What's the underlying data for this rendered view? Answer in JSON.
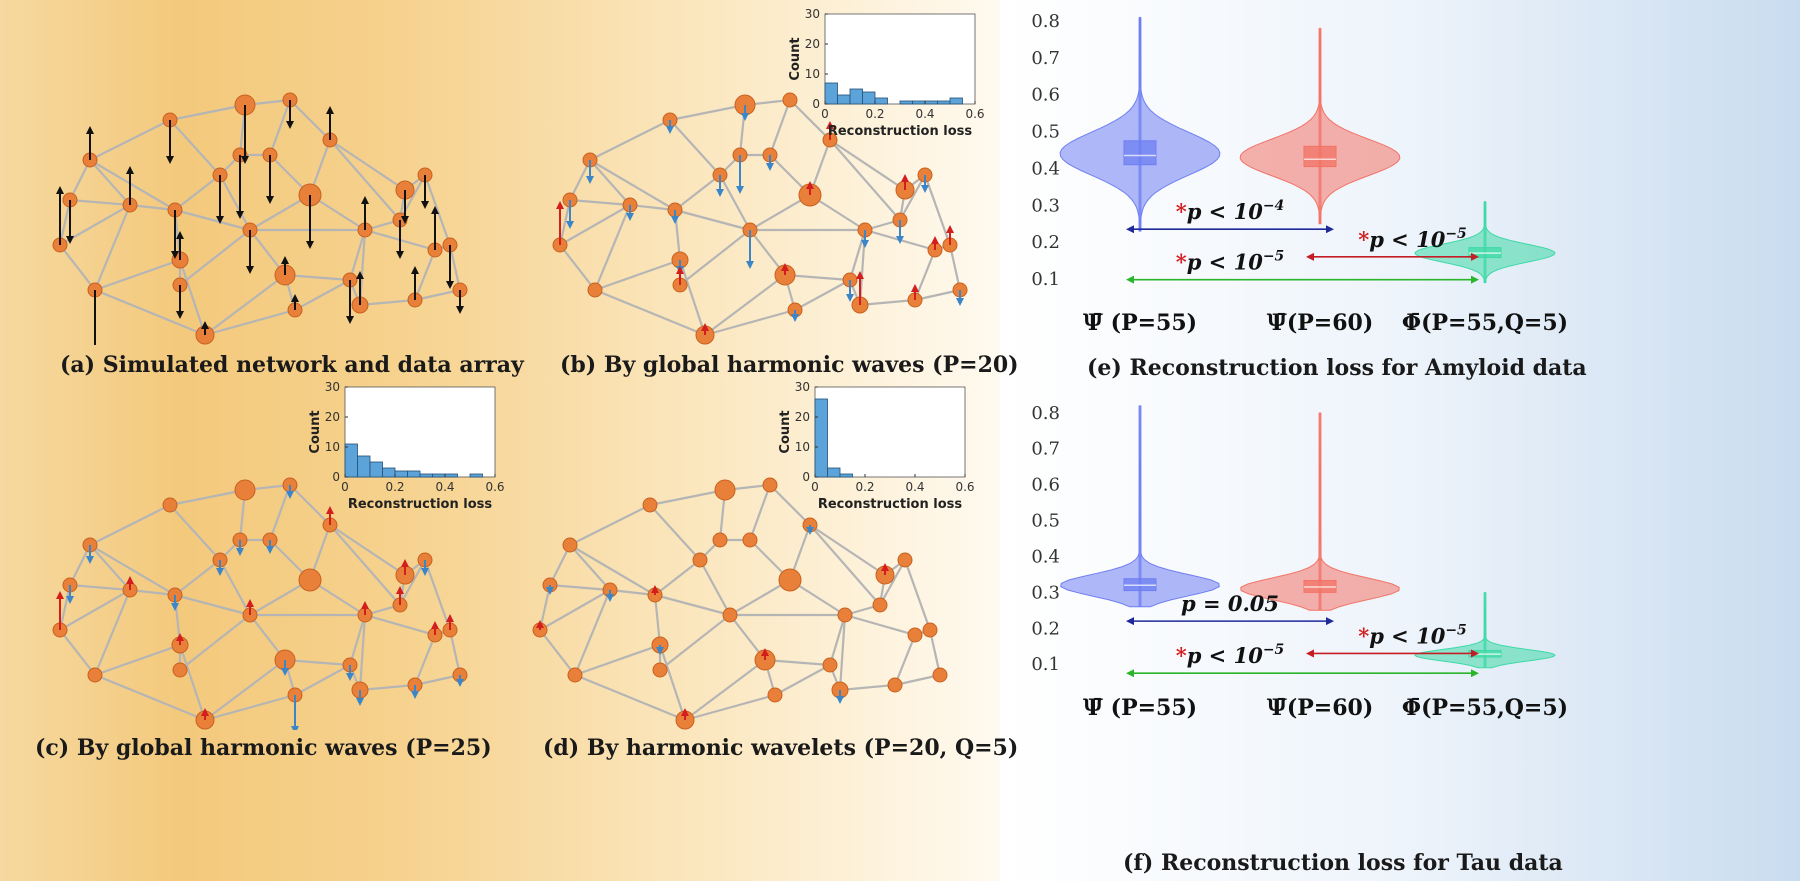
{
  "panels": {
    "a": {
      "caption": "(a) Simulated network and data array"
    },
    "b": {
      "caption": "(b) By global harmonic waves (P=20)"
    },
    "c": {
      "caption": "(c) By global harmonic waves (P=25)"
    },
    "d": {
      "caption": "(d) By harmonic wavelets (P=20, Q=5)"
    },
    "e": {
      "caption": "(e) Reconstruction loss for Amyloid data"
    },
    "f": {
      "caption": "(f) Reconstruction loss for Tau data"
    }
  },
  "colors": {
    "node": "#e8803a",
    "edge": "#b5b5b5",
    "arrow_black": "#111111",
    "arrow_red": "#d41e1e",
    "arrow_blue": "#3a86c8",
    "hist_bar": "#5ba3d9",
    "violin_blue": "#6f7ff2",
    "violin_red": "#f27366",
    "violin_green": "#3fd9a6",
    "line_blue": "#1f2a9a",
    "line_red": "#c41d25",
    "line_green": "#2bb52b"
  },
  "chart_data": [
    {
      "type": "bar",
      "id": "hist-b",
      "xlabel": "Reconstruction loss",
      "ylabel": "Count",
      "bins": [
        0.0,
        0.05,
        0.1,
        0.15,
        0.2,
        0.25,
        0.3,
        0.35,
        0.4,
        0.45,
        0.5,
        0.55
      ],
      "values": [
        7,
        3,
        5,
        4,
        2,
        0,
        1,
        1,
        1,
        1,
        2,
        0
      ],
      "bin_width": 0.05,
      "xlim": [
        0,
        0.6
      ],
      "ylim": [
        0,
        30
      ],
      "xticks": [
        "0",
        "0.2",
        "0.4",
        "0.6"
      ],
      "yticks": [
        "0",
        "10",
        "20",
        "30"
      ]
    },
    {
      "type": "bar",
      "id": "hist-c",
      "xlabel": "Reconstruction loss",
      "ylabel": "Count",
      "bins": [
        0.0,
        0.05,
        0.1,
        0.15,
        0.2,
        0.25,
        0.3,
        0.35,
        0.4,
        0.45,
        0.5,
        0.55
      ],
      "values": [
        11,
        7,
        5,
        3,
        2,
        2,
        1,
        1,
        1,
        0,
        1,
        0
      ],
      "bin_width": 0.05,
      "xlim": [
        0,
        0.6
      ],
      "ylim": [
        0,
        30
      ],
      "xticks": [
        "0",
        "0.2",
        "0.4",
        "0.6"
      ],
      "yticks": [
        "0",
        "10",
        "20",
        "30"
      ]
    },
    {
      "type": "bar",
      "id": "hist-d",
      "xlabel": "Reconstruction loss",
      "ylabel": "Count",
      "bins": [
        0.0,
        0.05,
        0.1,
        0.15,
        0.2,
        0.25,
        0.3,
        0.35,
        0.4,
        0.45,
        0.5,
        0.55
      ],
      "values": [
        26,
        3,
        1,
        0,
        0,
        0,
        0,
        0,
        0,
        0,
        0,
        0
      ],
      "bin_width": 0.05,
      "xlim": [
        0,
        0.6
      ],
      "ylim": [
        0,
        30
      ],
      "xticks": [
        "0",
        "0.2",
        "0.4",
        "0.6"
      ],
      "yticks": [
        "0",
        "10",
        "20",
        "30"
      ]
    },
    {
      "type": "violin",
      "id": "violin-e",
      "ylim": [
        0.07,
        0.83
      ],
      "yticks": [
        "0.1",
        "0.2",
        "0.3",
        "0.4",
        "0.5",
        "0.6",
        "0.7",
        "0.8"
      ],
      "groups": [
        {
          "label": "Ψ̄ (P=55)",
          "median": 0.435,
          "q1": 0.41,
          "q3": 0.475,
          "min": 0.23,
          "max": 0.81,
          "mode": 0.44,
          "color": "violin_blue"
        },
        {
          "label": "Ψ̄(P=60)",
          "median": 0.425,
          "q1": 0.405,
          "q3": 0.46,
          "min": 0.25,
          "max": 0.78,
          "mode": 0.43,
          "color": "violin_red"
        },
        {
          "label": "Φ̄(P=55,Q=5)",
          "median": 0.17,
          "q1": 0.158,
          "q3": 0.185,
          "min": 0.09,
          "max": 0.31,
          "mode": 0.17,
          "color": "violin_green"
        }
      ],
      "annotations": [
        {
          "text": "p < 10",
          "exp": "−4",
          "star": true,
          "line_from": 0,
          "line_to": 1,
          "line_y": 0.235,
          "color": "line_blue"
        },
        {
          "text": "p < 10",
          "exp": "−5",
          "star": true,
          "line_from": 1,
          "line_to": 2,
          "line_y": 0.16,
          "color": "line_red"
        },
        {
          "text": "p < 10",
          "exp": "−5",
          "star": true,
          "line_from": 0,
          "line_to": 2,
          "line_y": 0.098,
          "color": "line_green"
        }
      ]
    },
    {
      "type": "violin",
      "id": "violin-f",
      "ylim": [
        0.07,
        0.83
      ],
      "yticks": [
        "0.1",
        "0.2",
        "0.3",
        "0.4",
        "0.5",
        "0.6",
        "0.7",
        "0.8"
      ],
      "groups": [
        {
          "label": "Ψ̄ (P=55)",
          "median": 0.32,
          "q1": 0.305,
          "q3": 0.338,
          "min": 0.26,
          "max": 0.82,
          "mode": 0.32,
          "color": "violin_blue"
        },
        {
          "label": "Ψ̄(P=60)",
          "median": 0.315,
          "q1": 0.3,
          "q3": 0.333,
          "min": 0.25,
          "max": 0.8,
          "mode": 0.31,
          "color": "violin_red"
        },
        {
          "label": "Φ̄(P=55,Q=5)",
          "median": 0.128,
          "q1": 0.12,
          "q3": 0.138,
          "min": 0.09,
          "max": 0.3,
          "mode": 0.125,
          "color": "violin_green"
        }
      ],
      "annotations": [
        {
          "text": "p = 0.05",
          "exp": "",
          "star": false,
          "line_from": 0,
          "line_to": 1,
          "line_y": 0.22,
          "color": "line_blue"
        },
        {
          "text": "p < 10",
          "exp": "−5",
          "star": true,
          "line_from": 1,
          "line_to": 2,
          "line_y": 0.13,
          "color": "line_red"
        },
        {
          "text": "p < 10",
          "exp": "−5",
          "star": true,
          "line_from": 0,
          "line_to": 2,
          "line_y": 0.075,
          "color": "line_green"
        }
      ]
    }
  ]
}
